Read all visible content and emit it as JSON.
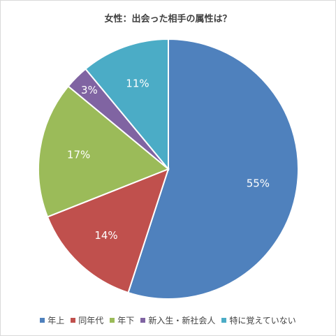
{
  "chart_data": {
    "type": "pie",
    "title": "女性：出会った相手の属性は？",
    "categories": [
      "年上",
      "同年代",
      "年下",
      "新入生・新社会人",
      "特に覚えていない"
    ],
    "values": [
      55,
      14,
      17,
      3,
      11
    ],
    "labels": [
      "55%",
      "14%",
      "17%",
      "3%",
      "11%"
    ],
    "colors": [
      "#4f81bd",
      "#c0504d",
      "#9bbb59",
      "#8064a2",
      "#4bacc6"
    ],
    "start_angle": "12 o'clock",
    "direction": "clockwise",
    "legend_position": "bottom"
  }
}
